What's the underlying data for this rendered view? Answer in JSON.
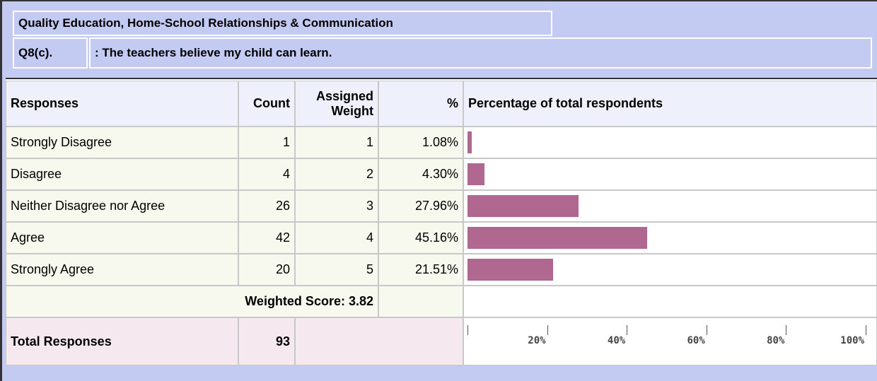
{
  "header": {
    "title": "Quality Education, Home-School Relationships & Communication",
    "question_code": "Q8(c).",
    "question_text": ": The teachers believe my child can learn."
  },
  "table": {
    "columns": [
      "Responses",
      "Count",
      "Assigned Weight",
      "%",
      "Percentage of total respondents"
    ],
    "rows": [
      {
        "response": "Strongly Disagree",
        "count": 1,
        "weight": 1,
        "percent": 1.08,
        "percent_label": "1.08%"
      },
      {
        "response": "Disagree",
        "count": 4,
        "weight": 2,
        "percent": 4.3,
        "percent_label": "4.30%"
      },
      {
        "response": "Neither Disagree nor Agree",
        "count": 26,
        "weight": 3,
        "percent": 27.96,
        "percent_label": "27.96%"
      },
      {
        "response": "Agree",
        "count": 42,
        "weight": 4,
        "percent": 45.16,
        "percent_label": "45.16%"
      },
      {
        "response": "Strongly Agree",
        "count": 20,
        "weight": 5,
        "percent": 21.51,
        "percent_label": "21.51%"
      }
    ],
    "weighted_score": "Weighted Score: 3.82",
    "total_label": "Total Responses",
    "total": 93
  },
  "chart": {
    "xlim": [
      0,
      100
    ],
    "xticks": [
      {
        "value": 20,
        "label": "20%"
      },
      {
        "value": 40,
        "label": "40%"
      },
      {
        "value": 60,
        "label": "60%"
      },
      {
        "value": 80,
        "label": "80%"
      },
      {
        "value": 100,
        "label": "100%"
      }
    ],
    "color": "#b06890"
  }
}
